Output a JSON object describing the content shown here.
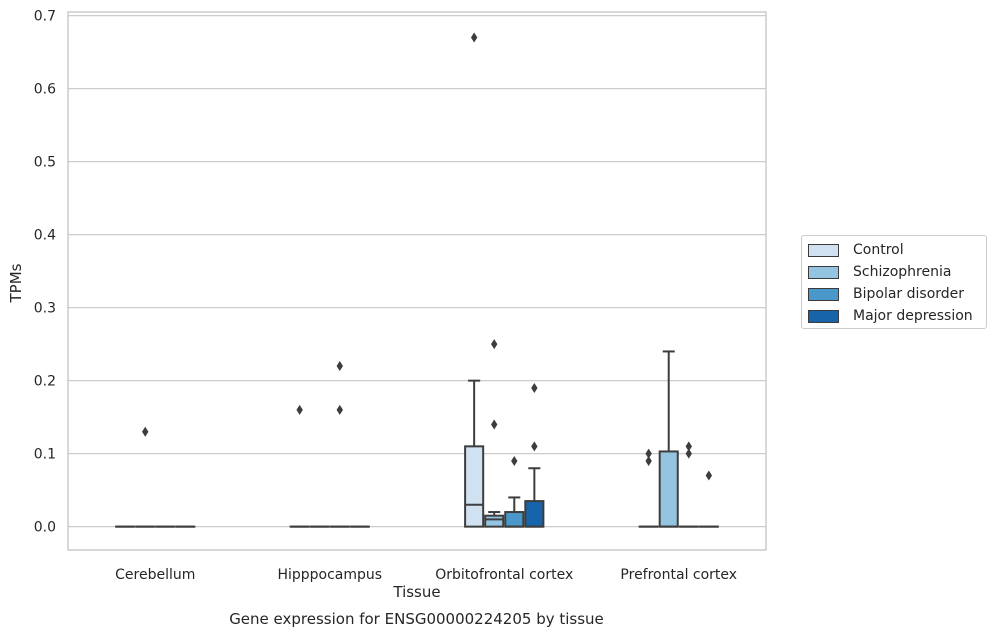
{
  "chart_data": {
    "type": "box",
    "title": "",
    "caption": "Gene expression for ENSG00000224205 by tissue",
    "xlabel": "Tissue",
    "ylabel": "TPMs",
    "ylim": [
      -0.032,
      0.705
    ],
    "yticks": [
      "0.0",
      "0.1",
      "0.2",
      "0.3",
      "0.4",
      "0.5",
      "0.6",
      "0.7"
    ],
    "grid": true,
    "legend_position": "right",
    "categories": [
      "Cerebellum",
      "Hipppocampus",
      "Orbitofrontal cortex",
      "Prefrontal cortex"
    ],
    "series": [
      {
        "name": "Control",
        "color": "#d0e1f2",
        "boxes": [
          {
            "q1": 0,
            "median": 0,
            "q3": 0,
            "whislo": 0,
            "whishi": 0,
            "fliers": []
          },
          {
            "q1": 0,
            "median": 0,
            "q3": 0,
            "whislo": 0,
            "whishi": 0,
            "fliers": [
              0.16
            ]
          },
          {
            "q1": 0,
            "median": 0.03,
            "q3": 0.11,
            "whislo": 0,
            "whishi": 0.2,
            "fliers": [
              0.67
            ]
          },
          {
            "q1": 0,
            "median": 0,
            "q3": 0,
            "whislo": 0,
            "whishi": 0,
            "fliers": [
              0.1,
              0.09
            ]
          }
        ]
      },
      {
        "name": "Schizophrenia",
        "color": "#94c4df",
        "boxes": [
          {
            "q1": 0,
            "median": 0,
            "q3": 0,
            "whislo": 0,
            "whishi": 0,
            "fliers": [
              0.13
            ]
          },
          {
            "q1": 0,
            "median": 0,
            "q3": 0,
            "whislo": 0,
            "whishi": 0,
            "fliers": []
          },
          {
            "q1": 0,
            "median": 0.01,
            "q3": 0.015,
            "whislo": 0,
            "whishi": 0.02,
            "fliers": [
              0.25,
              0.14
            ]
          },
          {
            "q1": 0,
            "median": 0,
            "q3": 0.103,
            "whislo": 0,
            "whishi": 0.24,
            "fliers": []
          }
        ]
      },
      {
        "name": "Bipolar disorder",
        "color": "#4a98c9",
        "boxes": [
          {
            "q1": 0,
            "median": 0,
            "q3": 0,
            "whislo": 0,
            "whishi": 0,
            "fliers": []
          },
          {
            "q1": 0,
            "median": 0,
            "q3": 0,
            "whislo": 0,
            "whishi": 0,
            "fliers": [
              0.22,
              0.16
            ]
          },
          {
            "q1": 0,
            "median": 0,
            "q3": 0.02,
            "whislo": 0,
            "whishi": 0.04,
            "fliers": [
              0.09
            ]
          },
          {
            "q1": 0,
            "median": 0,
            "q3": 0,
            "whislo": 0,
            "whishi": 0,
            "fliers": [
              0.11,
              0.1
            ]
          }
        ]
      },
      {
        "name": "Major depression",
        "color": "#1764ab",
        "boxes": [
          {
            "q1": 0,
            "median": 0,
            "q3": 0,
            "whislo": 0,
            "whishi": 0,
            "fliers": []
          },
          {
            "q1": 0,
            "median": 0,
            "q3": 0,
            "whislo": 0,
            "whishi": 0,
            "fliers": []
          },
          {
            "q1": 0,
            "median": 0,
            "q3": 0.035,
            "whislo": 0,
            "whishi": 0.08,
            "fliers": [
              0.19,
              0.11
            ]
          },
          {
            "q1": 0,
            "median": 0,
            "q3": 0,
            "whislo": 0,
            "whishi": 0,
            "fliers": [
              0.07
            ]
          }
        ]
      }
    ]
  }
}
